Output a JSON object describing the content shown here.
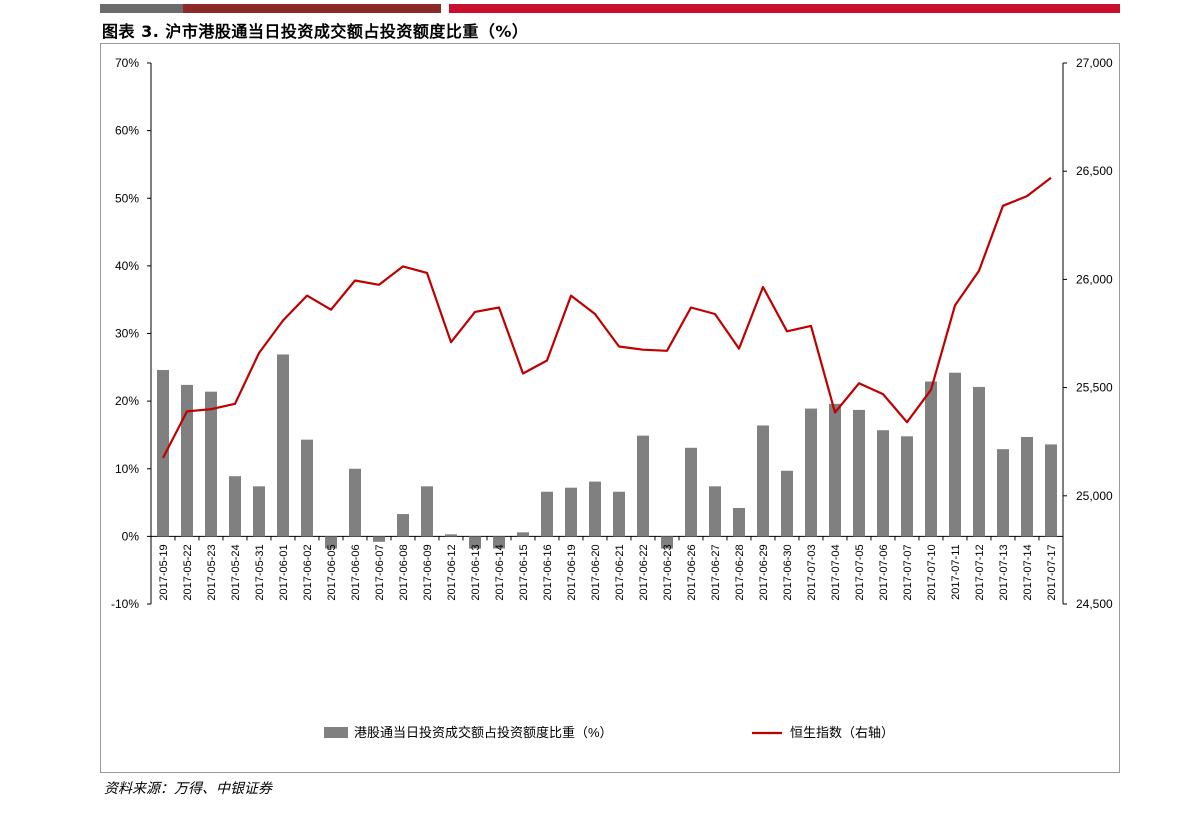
{
  "header": {
    "title": "图表 3. 沪市港股通当日投资成交额占投资额度比重（%）",
    "bar_colors": [
      "#6b6b6b",
      "#8c2a2a",
      "#c8102e"
    ]
  },
  "footer": {
    "source": "资料来源：万得、中银证券"
  },
  "chart_data": {
    "type": "bar+line",
    "title": "图表 3. 沪市港股通当日投资成交额占投资额度比重（%）",
    "categories": [
      "2017-05-19",
      "2017-05-22",
      "2017-05-23",
      "2017-05-24",
      "2017-05-31",
      "2017-06-01",
      "2017-06-02",
      "2017-06-05",
      "2017-06-06",
      "2017-06-07",
      "2017-06-08",
      "2017-06-09",
      "2017-06-12",
      "2017-06-13",
      "2017-06-14",
      "2017-06-15",
      "2017-06-16",
      "2017-06-19",
      "2017-06-20",
      "2017-06-21",
      "2017-06-22",
      "2017-06-23",
      "2017-06-26",
      "2017-06-27",
      "2017-06-28",
      "2017-06-29",
      "2017-06-30",
      "2017-07-03",
      "2017-07-04",
      "2017-07-05",
      "2017-07-06",
      "2017-07-07",
      "2017-07-10",
      "2017-07-11",
      "2017-07-12",
      "2017-07-13",
      "2017-07-14",
      "2017-07-17"
    ],
    "series": [
      {
        "name": "港股通当日投资成交额占投资额度比重（%）",
        "type": "bar",
        "axis": "left",
        "color": "#808080",
        "values": [
          24.6,
          22.4,
          21.4,
          8.9,
          7.4,
          26.9,
          14.3,
          -1.8,
          10.0,
          -0.8,
          3.3,
          7.4,
          0.3,
          -1.8,
          -1.8,
          0.6,
          6.6,
          7.2,
          8.1,
          6.6,
          14.9,
          -1.8,
          13.1,
          7.4,
          4.2,
          16.4,
          9.7,
          18.9,
          19.6,
          18.7,
          15.7,
          14.8,
          22.9,
          24.2,
          22.1,
          12.9,
          14.7,
          13.6
        ]
      },
      {
        "name": "恒生指数（右轴）",
        "type": "line",
        "axis": "right",
        "color": "#c00000",
        "values": [
          25175,
          25390,
          25400,
          25425,
          25660,
          25810,
          25925,
          25860,
          25995,
          25975,
          26060,
          26030,
          25710,
          25850,
          25870,
          25565,
          25625,
          25925,
          25840,
          25690,
          25675,
          25670,
          25870,
          25840,
          25680,
          25965,
          25760,
          25785,
          25385,
          25520,
          25470,
          25340,
          25490,
          25880,
          26040,
          26340,
          26385,
          26470
        ]
      }
    ],
    "y_left": {
      "min": -10,
      "max": 70,
      "step": 10,
      "unit": "%",
      "ticks": [
        "-10%",
        "0%",
        "10%",
        "20%",
        "30%",
        "40%",
        "50%",
        "60%",
        "70%"
      ]
    },
    "y_right": {
      "min": 24500,
      "max": 27000,
      "step": 500,
      "ticks": [
        "24,500",
        "25,000",
        "25,500",
        "26,000",
        "26,500",
        "27,000"
      ]
    },
    "legend": {
      "placement": "bottom-center",
      "items": [
        "港股通当日投资成交额占投资额度比重（%）",
        "恒生指数（右轴）"
      ]
    },
    "grid": false
  }
}
